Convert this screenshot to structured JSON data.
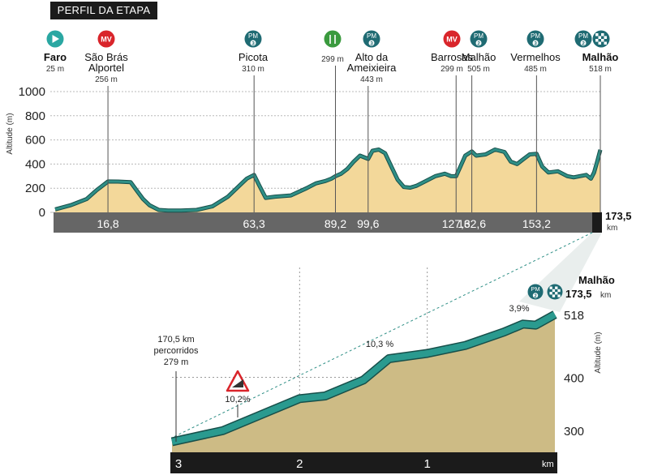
{
  "title": "PERFIL DA ETAPA",
  "colors": {
    "fill": "#f3d89a",
    "line": "#2f8f86",
    "line_dark": "#174f4a",
    "axis_band": "#666666",
    "km_band": "#1b1b1b",
    "pm": "#1f6b73",
    "mv": "#d9252b",
    "start": "#2aa7a2",
    "zoom_fill": "#cdbb85"
  },
  "main_chart": {
    "ylabel": "Altitude (m)",
    "yticks": [
      "0",
      "200",
      "400",
      "600",
      "800",
      "1000"
    ],
    "total_km": "173,5",
    "km_unit": "km",
    "axis_ticks": [
      "16,8",
      "63,3",
      "89,2",
      "99,6",
      "127,6",
      "132,6",
      "153,2"
    ]
  },
  "markers": [
    {
      "icon": "start-flag-icon",
      "badge": "",
      "name": "Faro",
      "alt": "25 m",
      "bold": true
    },
    {
      "icon": "mv-icon",
      "badge": "MV",
      "name": "São Brás Alportel",
      "alt": "256 m",
      "bold": false
    },
    {
      "icon": "pm-icon",
      "badge": "PM",
      "cat": "3",
      "name": "Picota",
      "alt": "310 m",
      "bold": false
    },
    {
      "icon": "feed-zone-icon",
      "badge": "",
      "name": "",
      "alt": "299 m",
      "bold": false
    },
    {
      "icon": "pm-icon",
      "badge": "PM",
      "cat": "3",
      "name": "Alto da Ameixieira",
      "alt": "443 m",
      "bold": false
    },
    {
      "icon": "mv-icon",
      "badge": "MV",
      "name": "Barrosas",
      "alt": "299 m",
      "bold": false
    },
    {
      "icon": "pm-icon",
      "badge": "PM",
      "cat": "2",
      "name": "Malhão",
      "alt": "505 m",
      "bold": false
    },
    {
      "icon": "pm-icon",
      "badge": "PM",
      "cat": "3",
      "name": "Vermelhos",
      "alt": "485 m",
      "bold": false
    },
    {
      "icon": "finish-flag-icon",
      "badge": "PM",
      "cat": "2",
      "name": "Malhão",
      "alt": "518 m",
      "bold": true
    }
  ],
  "zoom": {
    "start_label_1": "170,5 km",
    "start_label_2": "percorridos",
    "start_label_3": "279 m",
    "finish_name": "Malhão",
    "finish_km": "173,5",
    "finish_km_unit": "km",
    "finish_badge": "PM",
    "finish_cat": "2",
    "ylabel": "Altitude (m)",
    "yticks": [
      "300",
      "400",
      "518"
    ],
    "km_ticks": [
      "3",
      "2",
      "1"
    ],
    "km_unit": "km",
    "gradients": [
      "10,2%",
      "10,3 %",
      "3,9%"
    ]
  },
  "chart_data": [
    {
      "type": "area",
      "title": "PERFIL DA ETAPA",
      "xlabel": "",
      "ylabel": "Altitude (m)",
      "ylim": [
        0,
        1000
      ],
      "xlim": [
        0,
        173.5
      ],
      "x": [
        0,
        5,
        10,
        13,
        16.8,
        20,
        24,
        26,
        28,
        30,
        33,
        36,
        40,
        45,
        50,
        55,
        59,
        61,
        63.3,
        65,
        67,
        70,
        75,
        80,
        83,
        86,
        88,
        89.2,
        91,
        93,
        95,
        97,
        99.6,
        101,
        103,
        105,
        107,
        109,
        111,
        113,
        115,
        118,
        121,
        124,
        126,
        127.6,
        129,
        130.5,
        132.6,
        134,
        137,
        140,
        143,
        145,
        147,
        149,
        151,
        153.2,
        155,
        157,
        160,
        163,
        165,
        167,
        169,
        170.5,
        171.5,
        172.5,
        173.5
      ],
      "y": [
        25,
        60,
        110,
        180,
        256,
        255,
        250,
        180,
        110,
        60,
        20,
        15,
        15,
        20,
        50,
        130,
        230,
        280,
        310,
        220,
        120,
        130,
        140,
        200,
        240,
        260,
        280,
        299,
        320,
        360,
        420,
        470,
        443,
        510,
        520,
        490,
        380,
        270,
        210,
        205,
        220,
        260,
        300,
        320,
        300,
        299,
        380,
        470,
        505,
        470,
        480,
        520,
        500,
        420,
        400,
        440,
        480,
        485,
        380,
        330,
        340,
        300,
        290,
        300,
        310,
        279,
        330,
        420,
        518
      ]
    },
    {
      "type": "area",
      "title": "Malhão",
      "xlabel": "km",
      "ylabel": "Altitude (m)",
      "ylim": [
        280,
        525
      ],
      "x": [
        3,
        2.6,
        2.4,
        2.25,
        2,
        1.8,
        1.5,
        1.3,
        1,
        0.7,
        0.4,
        0.25,
        0.15,
        0
      ],
      "y": [
        279,
        300,
        320,
        335,
        360,
        365,
        395,
        435,
        445,
        460,
        485,
        500,
        498,
        518
      ],
      "annotations": [
        "10,2%",
        "10,3 %",
        "3,9%"
      ]
    }
  ]
}
